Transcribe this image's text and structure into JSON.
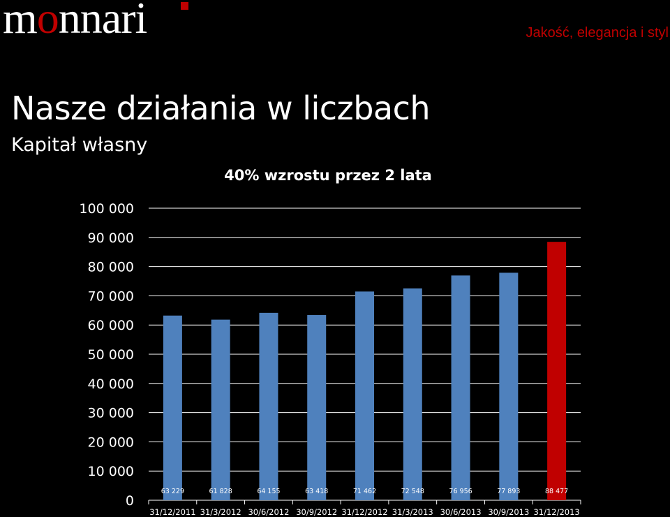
{
  "header": {
    "logo_text": "monnari",
    "tagline": "Jakość, elegancja i styl"
  },
  "page": {
    "title": "Nasze działania w liczbach",
    "subtitle": "Kapitał własny"
  },
  "colors": {
    "background": "#000000",
    "brand_red": "#c00000",
    "bar_default": "#4f81bd",
    "bar_highlight": "#c00000",
    "gridline": "#ffffff"
  },
  "chart_data": {
    "type": "bar",
    "title": "40% wzrostu przez 2 lata",
    "categories": [
      "31/12/2011",
      "31/3/2012",
      "30/6/2012",
      "30/9/2012",
      "31/12/2012",
      "31/3/2013",
      "30/6/2013",
      "30/9/2013",
      "31/12/2013"
    ],
    "values": [
      63229,
      61828,
      64155,
      63418,
      71462,
      72548,
      76956,
      77893,
      88477
    ],
    "data_labels": [
      "63 229",
      "61 828",
      "64 155",
      "63 418",
      "71 462",
      "72 548",
      "76 956",
      "77 893",
      "88 477"
    ],
    "highlight_index": 8,
    "ylim": [
      0,
      100000
    ],
    "yticks": [
      0,
      10000,
      20000,
      30000,
      40000,
      50000,
      60000,
      70000,
      80000,
      90000,
      100000
    ],
    "ytick_labels": [
      "0",
      "10 000",
      "20 000",
      "30 000",
      "40 000",
      "50 000",
      "60 000",
      "70 000",
      "80 000",
      "90 000",
      "100 000"
    ],
    "grid": true,
    "legend": "none"
  }
}
